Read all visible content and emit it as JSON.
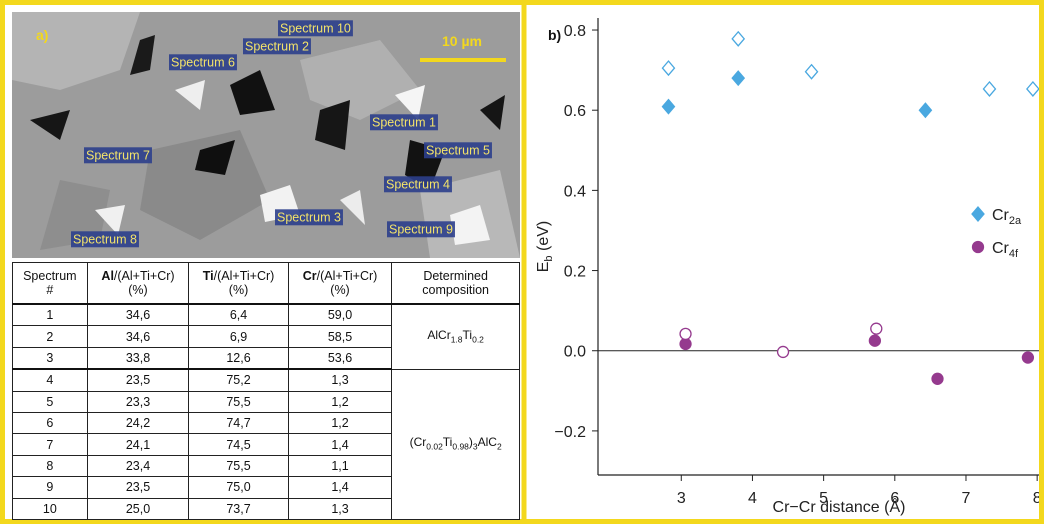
{
  "panel_a": {
    "label": "a)",
    "scale_bar": "10 µm",
    "spectra": [
      "Spectrum 1",
      "Spectrum 2",
      "Spectrum 3",
      "Spectrum 4",
      "Spectrum 5",
      "Spectrum 6",
      "Spectrum 7",
      "Spectrum 8",
      "Spectrum 9",
      "Spectrum 10"
    ]
  },
  "table": {
    "header": [
      [
        "Spectrum",
        "#"
      ],
      [
        "Al",
        "/(Al+Ti+Cr)",
        "(%)"
      ],
      [
        "Ti",
        "/(Al+Ti+Cr)",
        "(%)"
      ],
      [
        "Cr",
        "/(Al+Ti+Cr)",
        "(%)"
      ],
      [
        "Determined",
        "composition"
      ]
    ],
    "rows": [
      [
        "1",
        "34,6",
        "6,4",
        "59,0"
      ],
      [
        "2",
        "34,6",
        "6,9",
        "58,5"
      ],
      [
        "3",
        "33,8",
        "12,6",
        "53,6"
      ],
      [
        "4",
        "23,5",
        "75,2",
        "1,3"
      ],
      [
        "5",
        "23,3",
        "75,5",
        "1,2"
      ],
      [
        "6",
        "24,2",
        "74,7",
        "1,2"
      ],
      [
        "7",
        "24,1",
        "74,5",
        "1,4"
      ],
      [
        "8",
        "23,4",
        "75,5",
        "1,1"
      ],
      [
        "9",
        "23,5",
        "75,0",
        "1,4"
      ],
      [
        "10",
        "25,0",
        "73,7",
        "1,3"
      ]
    ],
    "compositions": [
      [
        "AlCr",
        "1.8",
        "Ti",
        "0.2"
      ],
      [
        "(Cr",
        "0.02",
        "Ti",
        "0.98",
        ")",
        "3",
        "AlC",
        "2"
      ]
    ]
  },
  "chart_data": {
    "type": "scatter",
    "label": "b)",
    "xlabel": "Cr−Cr distance (Å)",
    "ylabel": [
      "E",
      "b",
      " (eV)"
    ],
    "xlim": [
      1.83,
      8.04
    ],
    "ylim": [
      -0.31,
      0.83
    ],
    "xticks": [
      3,
      4,
      5,
      6,
      7,
      8
    ],
    "yticks": [
      {
        "value": -0.2,
        "label": "−0.2"
      },
      {
        "value": 0,
        "label": "0.0"
      },
      {
        "value": 0.2,
        "label": "0.2"
      },
      {
        "value": 0.4,
        "label": "0.4"
      },
      {
        "value": 0.6,
        "label": "0.6"
      },
      {
        "value": 0.8,
        "label": "0.8"
      }
    ],
    "zero_line": true,
    "legend": "right",
    "series": [
      {
        "name": "Cr",
        "subscript": "2a",
        "marker": "diamond",
        "filled": true,
        "color": "#4aa8e0",
        "x": [
          2.82,
          3.8,
          6.43
        ],
        "values": [
          0.609,
          0.68,
          0.6
        ]
      },
      {
        "marker": "diamond",
        "filled": false,
        "color": "#4aa8e0",
        "x": [
          2.82,
          3.8,
          4.83,
          7.33,
          7.94
        ],
        "values": [
          0.705,
          0.778,
          0.696,
          0.653,
          0.653
        ]
      },
      {
        "name": "Cr",
        "subscript": "4f",
        "marker": "circle",
        "filled": true,
        "color": "#953a8e",
        "x": [
          3.06,
          5.72,
          6.6,
          7.87
        ],
        "values": [
          0.017,
          0.025,
          -0.07,
          -0.017
        ]
      },
      {
        "marker": "circle",
        "filled": false,
        "color": "#953a8e",
        "x": [
          3.06,
          4.43,
          5.74
        ],
        "values": [
          0.042,
          -0.003,
          0.055
        ]
      }
    ]
  }
}
